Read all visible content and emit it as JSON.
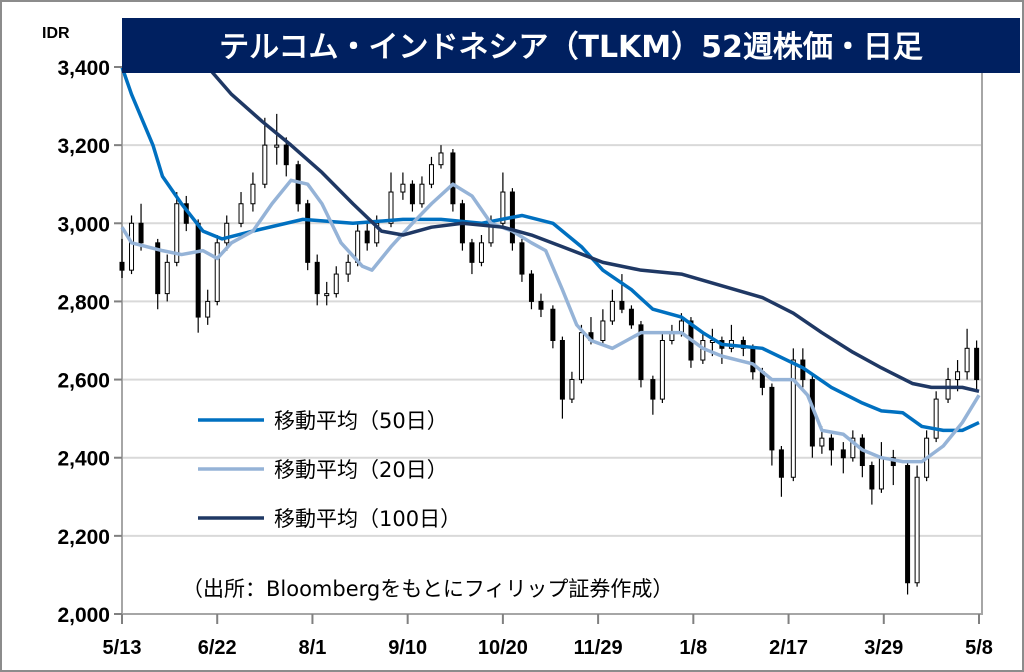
{
  "chart_data": {
    "type": "candlestick",
    "title": "テルコム・インドネシア（TLKM）52週株価・日足",
    "ylabel": "IDR",
    "ylim": [
      2000,
      3400
    ],
    "yticks": [
      2000,
      2200,
      2400,
      2600,
      2800,
      3000,
      3200,
      3400
    ],
    "ytick_labels": [
      "2,000",
      "2,200",
      "2,400",
      "2,600",
      "2,800",
      "3,000",
      "3,200",
      "3,400"
    ],
    "x_unit": "days since 5/13",
    "xlim": [
      0,
      360
    ],
    "xticks": [
      0,
      40,
      80,
      120,
      160,
      200,
      240,
      280,
      320,
      360
    ],
    "xtick_labels": [
      "5/13",
      "6/22",
      "8/1",
      "9/10",
      "10/20",
      "11/29",
      "1/8",
      "2/17",
      "3/29",
      "5/8"
    ],
    "grid": true,
    "source": "（出所：Bloombergをもとにフィリップ証券作成）",
    "candles_fields": [
      "day",
      "open",
      "high",
      "low",
      "close"
    ],
    "candles": [
      [
        0,
        2900,
        2960,
        2860,
        2880
      ],
      [
        4,
        2880,
        3020,
        2870,
        3000
      ],
      [
        8,
        3000,
        3050,
        2930,
        2950
      ],
      [
        15,
        2950,
        2960,
        2780,
        2820
      ],
      [
        19,
        2820,
        2920,
        2800,
        2900
      ],
      [
        23,
        2900,
        3080,
        2890,
        3050
      ],
      [
        27,
        3050,
        3070,
        2980,
        3000
      ],
      [
        32,
        3000,
        3010,
        2720,
        2760
      ],
      [
        36,
        2760,
        2830,
        2740,
        2800
      ],
      [
        40,
        2800,
        2970,
        2790,
        2950
      ],
      [
        44,
        2950,
        3020,
        2930,
        3000
      ],
      [
        50,
        3000,
        3080,
        2990,
        3050
      ],
      [
        55,
        3050,
        3130,
        3030,
        3100
      ],
      [
        60,
        3100,
        3270,
        3090,
        3200
      ],
      [
        65,
        3200,
        3280,
        3150,
        3200
      ],
      [
        69,
        3200,
        3220,
        3120,
        3150
      ],
      [
        74,
        3150,
        3160,
        3030,
        3050
      ],
      [
        78,
        3050,
        3060,
        2880,
        2900
      ],
      [
        82,
        2900,
        2920,
        2790,
        2820
      ],
      [
        86,
        2820,
        2850,
        2790,
        2820
      ],
      [
        90,
        2820,
        2890,
        2810,
        2870
      ],
      [
        95,
        2870,
        2920,
        2850,
        2900
      ],
      [
        99,
        2900,
        3000,
        2890,
        2980
      ],
      [
        103,
        2980,
        3000,
        2930,
        2950
      ],
      [
        107,
        2950,
        3020,
        2940,
        3000
      ],
      [
        113,
        3000,
        3130,
        2990,
        3080
      ],
      [
        118,
        3080,
        3130,
        3060,
        3100
      ],
      [
        122,
        3100,
        3110,
        3030,
        3050
      ],
      [
        126,
        3050,
        3120,
        3040,
        3100
      ],
      [
        130,
        3100,
        3170,
        3090,
        3150
      ],
      [
        134,
        3150,
        3200,
        3140,
        3180
      ],
      [
        139,
        3180,
        3190,
        3030,
        3050
      ],
      [
        143,
        3050,
        3060,
        2930,
        2950
      ],
      [
        147,
        2950,
        2960,
        2870,
        2900
      ],
      [
        151,
        2900,
        2970,
        2890,
        2950
      ],
      [
        155,
        2950,
        3020,
        2940,
        3000
      ],
      [
        160,
        3000,
        3130,
        2990,
        3080
      ],
      [
        164,
        3080,
        3090,
        2930,
        2950
      ],
      [
        168,
        2950,
        2960,
        2850,
        2870
      ],
      [
        172,
        2870,
        2880,
        2780,
        2800
      ],
      [
        176,
        2800,
        2820,
        2760,
        2780
      ],
      [
        181,
        2780,
        2790,
        2680,
        2700
      ],
      [
        185,
        2700,
        2710,
        2500,
        2550
      ],
      [
        189,
        2550,
        2620,
        2540,
        2600
      ],
      [
        193,
        2600,
        2740,
        2590,
        2720
      ],
      [
        197,
        2720,
        2760,
        2690,
        2700
      ],
      [
        202,
        2700,
        2780,
        2690,
        2750
      ],
      [
        206,
        2750,
        2830,
        2740,
        2800
      ],
      [
        210,
        2800,
        2870,
        2770,
        2780
      ],
      [
        214,
        2780,
        2790,
        2730,
        2740
      ],
      [
        218,
        2740,
        2750,
        2580,
        2600
      ],
      [
        223,
        2600,
        2610,
        2510,
        2550
      ],
      [
        227,
        2550,
        2720,
        2540,
        2700
      ],
      [
        231,
        2700,
        2740,
        2690,
        2720
      ],
      [
        235,
        2720,
        2770,
        2710,
        2750
      ],
      [
        239,
        2750,
        2760,
        2630,
        2650
      ],
      [
        244,
        2650,
        2720,
        2640,
        2700
      ],
      [
        248,
        2700,
        2730,
        2660,
        2700
      ],
      [
        252,
        2700,
        2710,
        2640,
        2680
      ],
      [
        256,
        2680,
        2740,
        2670,
        2700
      ],
      [
        261,
        2700,
        2710,
        2660,
        2680
      ],
      [
        265,
        2680,
        2690,
        2600,
        2620
      ],
      [
        269,
        2620,
        2630,
        2560,
        2580
      ],
      [
        273,
        2580,
        2590,
        2380,
        2420
      ],
      [
        277,
        2420,
        2430,
        2300,
        2350
      ],
      [
        282,
        2350,
        2680,
        2340,
        2650
      ],
      [
        286,
        2650,
        2680,
        2580,
        2600
      ],
      [
        290,
        2600,
        2610,
        2400,
        2430
      ],
      [
        294,
        2430,
        2480,
        2410,
        2450
      ],
      [
        298,
        2450,
        2460,
        2380,
        2420
      ],
      [
        303,
        2420,
        2440,
        2360,
        2400
      ],
      [
        307,
        2400,
        2470,
        2390,
        2450
      ],
      [
        311,
        2450,
        2460,
        2350,
        2380
      ],
      [
        315,
        2380,
        2390,
        2280,
        2320
      ],
      [
        319,
        2320,
        2440,
        2310,
        2400
      ],
      [
        324,
        2400,
        2420,
        2330,
        2380
      ],
      [
        330,
        2380,
        2390,
        2050,
        2080
      ],
      [
        334,
        2080,
        2380,
        2070,
        2350
      ],
      [
        338,
        2350,
        2470,
        2340,
        2450
      ],
      [
        342,
        2450,
        2570,
        2440,
        2550
      ],
      [
        347,
        2550,
        2630,
        2540,
        2600
      ],
      [
        351,
        2600,
        2650,
        2570,
        2620
      ],
      [
        355,
        2620,
        2730,
        2600,
        2680
      ],
      [
        359,
        2680,
        2700,
        2570,
        2600
      ]
    ],
    "series": [
      {
        "name": "移動平均（50日）",
        "color": "#0070c0",
        "points": [
          [
            0,
            3400
          ],
          [
            4,
            3330
          ],
          [
            13,
            3200
          ],
          [
            17,
            3120
          ],
          [
            25,
            3050
          ],
          [
            34,
            2980
          ],
          [
            42,
            2960
          ],
          [
            55,
            2980
          ],
          [
            76,
            3010
          ],
          [
            97,
            3000
          ],
          [
            118,
            3010
          ],
          [
            134,
            3010
          ],
          [
            151,
            3000
          ],
          [
            168,
            3020
          ],
          [
            181,
            3000
          ],
          [
            193,
            2940
          ],
          [
            202,
            2880
          ],
          [
            214,
            2830
          ],
          [
            223,
            2780
          ],
          [
            235,
            2760
          ],
          [
            244,
            2720
          ],
          [
            252,
            2690
          ],
          [
            269,
            2680
          ],
          [
            286,
            2630
          ],
          [
            298,
            2580
          ],
          [
            311,
            2540
          ],
          [
            319,
            2520
          ],
          [
            328,
            2515
          ],
          [
            336,
            2480
          ],
          [
            345,
            2470
          ],
          [
            353,
            2470
          ],
          [
            360,
            2490
          ]
        ]
      },
      {
        "name": "移動平均（20日）",
        "color": "#95b3d7",
        "points": [
          [
            0,
            2990
          ],
          [
            4,
            2950
          ],
          [
            17,
            2930
          ],
          [
            25,
            2920
          ],
          [
            34,
            2930
          ],
          [
            40,
            2910
          ],
          [
            46,
            2950
          ],
          [
            55,
            2980
          ],
          [
            63,
            3050
          ],
          [
            71,
            3110
          ],
          [
            78,
            3100
          ],
          [
            84,
            3050
          ],
          [
            92,
            2950
          ],
          [
            101,
            2890
          ],
          [
            105,
            2880
          ],
          [
            113,
            2940
          ],
          [
            122,
            3000
          ],
          [
            130,
            3050
          ],
          [
            139,
            3100
          ],
          [
            147,
            3070
          ],
          [
            155,
            3000
          ],
          [
            164,
            2980
          ],
          [
            172,
            2950
          ],
          [
            178,
            2930
          ],
          [
            185,
            2830
          ],
          [
            191,
            2740
          ],
          [
            197,
            2700
          ],
          [
            206,
            2680
          ],
          [
            212,
            2700
          ],
          [
            218,
            2720
          ],
          [
            235,
            2720
          ],
          [
            244,
            2680
          ],
          [
            252,
            2660
          ],
          [
            265,
            2640
          ],
          [
            273,
            2600
          ],
          [
            282,
            2600
          ],
          [
            288,
            2560
          ],
          [
            294,
            2470
          ],
          [
            303,
            2460
          ],
          [
            311,
            2420
          ],
          [
            319,
            2400
          ],
          [
            328,
            2390
          ],
          [
            336,
            2390
          ],
          [
            345,
            2430
          ],
          [
            353,
            2490
          ],
          [
            360,
            2560
          ]
        ]
      },
      {
        "name": "移動平均（100日）",
        "color": "#1f3864",
        "points": [
          [
            36,
            3400
          ],
          [
            46,
            3330
          ],
          [
            59,
            3260
          ],
          [
            71,
            3200
          ],
          [
            84,
            3130
          ],
          [
            97,
            3050
          ],
          [
            109,
            2980
          ],
          [
            118,
            2970
          ],
          [
            130,
            2990
          ],
          [
            143,
            3000
          ],
          [
            160,
            2990
          ],
          [
            172,
            2970
          ],
          [
            185,
            2940
          ],
          [
            202,
            2900
          ],
          [
            218,
            2880
          ],
          [
            235,
            2870
          ],
          [
            252,
            2840
          ],
          [
            269,
            2810
          ],
          [
            282,
            2770
          ],
          [
            294,
            2720
          ],
          [
            307,
            2670
          ],
          [
            319,
            2630
          ],
          [
            332,
            2590
          ],
          [
            340,
            2580
          ],
          [
            353,
            2580
          ],
          [
            360,
            2570
          ]
        ]
      }
    ]
  }
}
